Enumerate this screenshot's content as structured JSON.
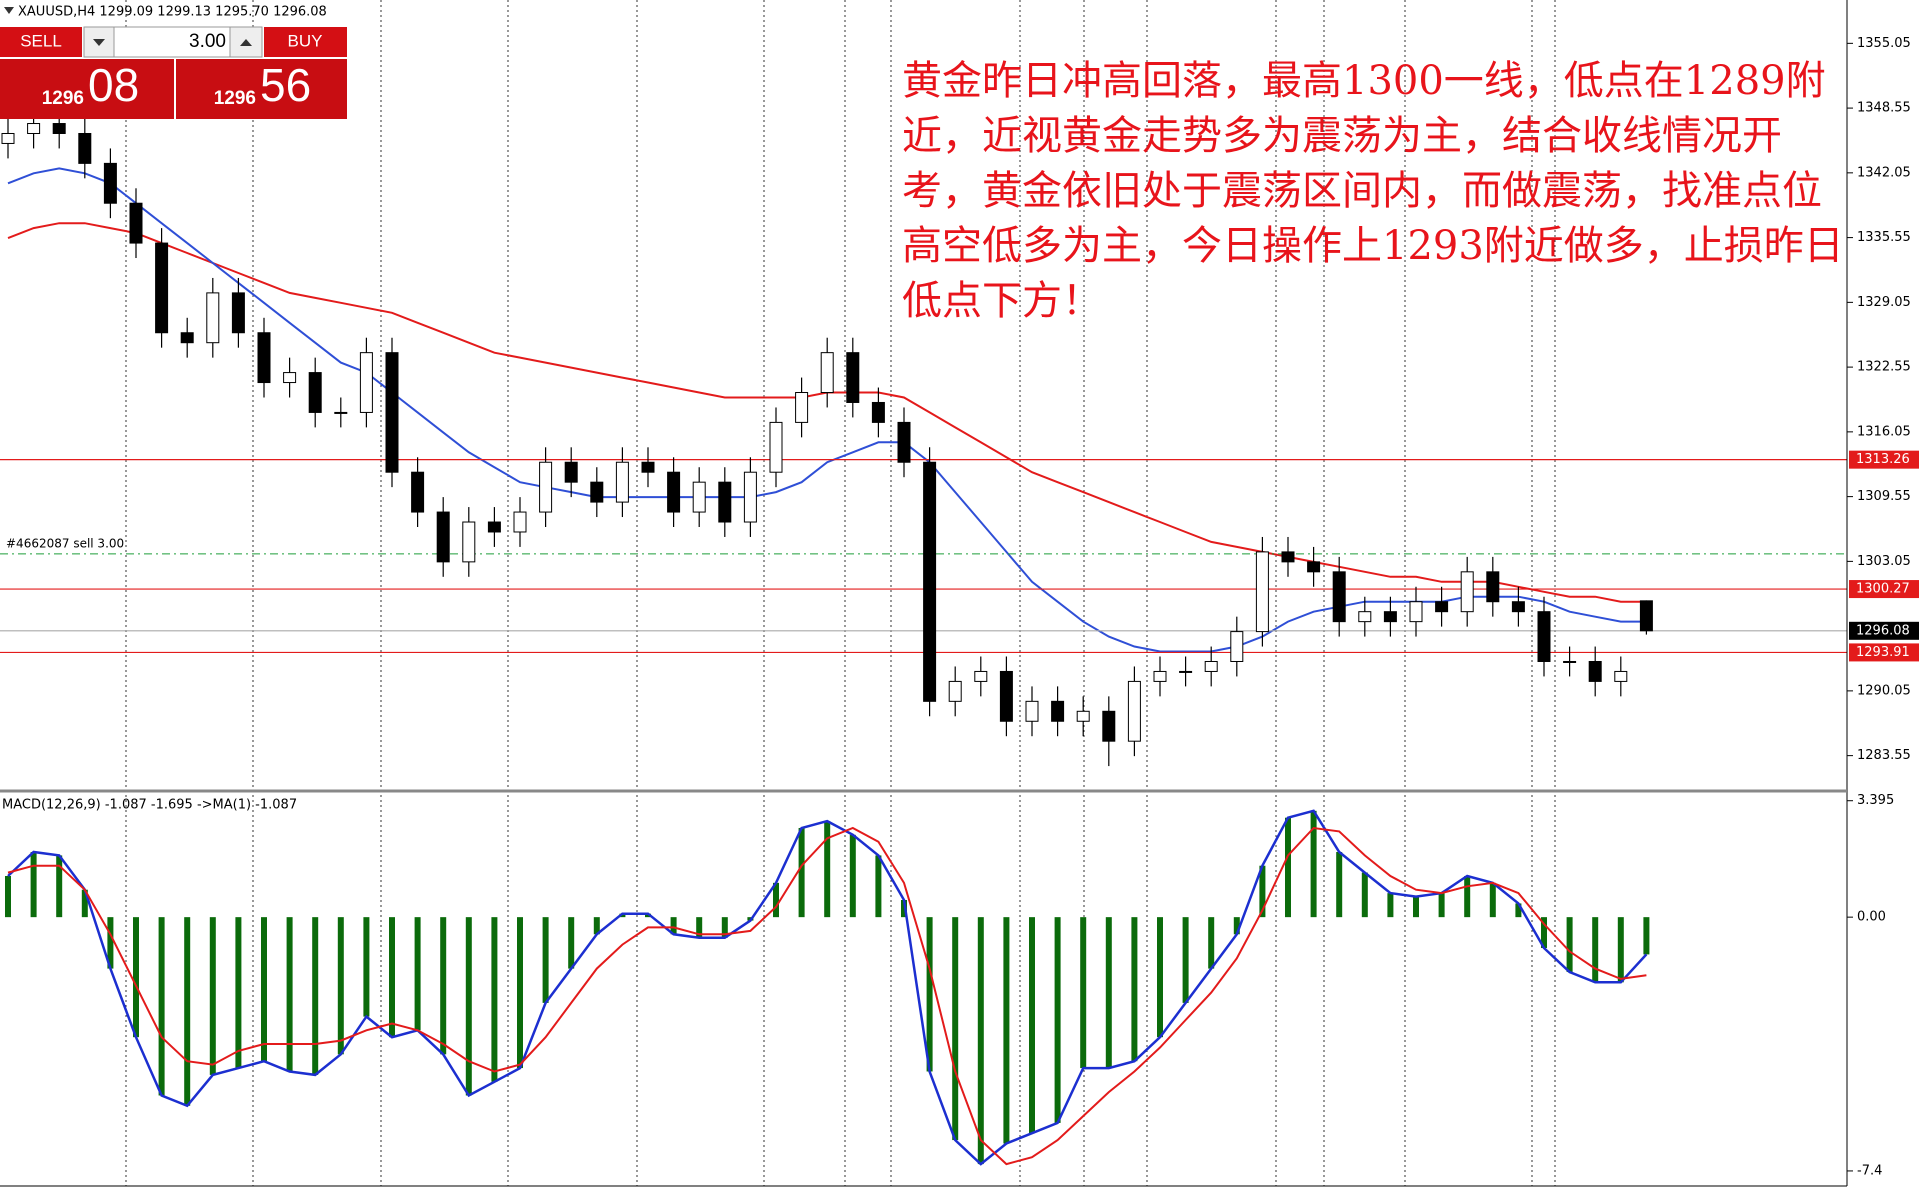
{
  "header": {
    "text": "XAUUSD,H4  1299.09 1299.13 1295.70 1296.08"
  },
  "trade_panel": {
    "sell": "SELL",
    "buy": "BUY",
    "lot": "3.00",
    "bid_big": "1296",
    "bid_small": "08",
    "ask_big": "1296",
    "ask_small": "56"
  },
  "annotation": {
    "lines": [
      "黄金昨日冲高回落，最高1300一线，低点在1289附",
      "近，近视黄金走势多为震荡为主，结合收线情况开",
      "考，黄金依旧处于震荡区间内，而做震荡，找准点位",
      "高空低多为主，今日操作上1293附近做多，止损昨日",
      "低点下方！"
    ],
    "color": "#e8141b"
  },
  "chart_data": [
    {
      "type": "candlestick",
      "open": [
        1345,
        1346,
        1347,
        1346,
        1343,
        1339,
        1335,
        1326,
        1325,
        1330,
        1326,
        1321,
        1322,
        1318,
        1318,
        1324,
        1312,
        1308,
        1303,
        1307,
        1306,
        1308,
        1313,
        1311,
        1309,
        1313,
        1312,
        1308,
        1311,
        1307,
        1312,
        1317,
        1320,
        1324,
        1319,
        1317,
        1313,
        1289,
        1291,
        1292,
        1287,
        1289,
        1287,
        1288,
        1285,
        1291,
        1292,
        1292,
        1293,
        1296,
        1304,
        1303,
        1302,
        1297,
        1298,
        1297,
        1299,
        1298,
        1302,
        1299,
        1298,
        1293,
        1293,
        1291,
        1299.09
      ],
      "high": [
        1347.5,
        1348.5,
        1348.5,
        1347.5,
        1344.5,
        1340.5,
        1336.5,
        1327.5,
        1331.5,
        1331.5,
        1327.5,
        1323.5,
        1323.5,
        1319.5,
        1325.5,
        1325.5,
        1313.5,
        1309.5,
        1308.5,
        1308.5,
        1309.5,
        1314.5,
        1314.5,
        1312.5,
        1314.5,
        1314.5,
        1313.5,
        1312.5,
        1312.5,
        1313.5,
        1318.5,
        1321.5,
        1325.5,
        1325.5,
        1320.5,
        1318.5,
        1314.5,
        1292.5,
        1293.5,
        1293.5,
        1290.5,
        1290.5,
        1289.5,
        1289.5,
        1292.5,
        1293.5,
        1293.5,
        1294.5,
        1297.5,
        1305.5,
        1305.5,
        1304.5,
        1303.5,
        1299.5,
        1299.5,
        1300.5,
        1300.5,
        1303.5,
        1303.5,
        1300.5,
        1299.5,
        1294.5,
        1294.5,
        1293.5,
        1299.13
      ],
      "low": [
        1343.5,
        1344.5,
        1344.5,
        1341.5,
        1337.5,
        1333.5,
        1324.5,
        1323.5,
        1323.5,
        1324.5,
        1319.5,
        1319.5,
        1316.5,
        1316.5,
        1316.5,
        1310.5,
        1306.5,
        1301.5,
        1301.5,
        1304.5,
        1304.5,
        1306.5,
        1309.5,
        1307.5,
        1307.5,
        1310.5,
        1306.5,
        1306.5,
        1305.5,
        1305.5,
        1310.5,
        1315.5,
        1318.5,
        1317.5,
        1315.5,
        1311.5,
        1287.5,
        1287.5,
        1289.5,
        1285.5,
        1285.5,
        1285.5,
        1285.5,
        1282.5,
        1283.5,
        1289.5,
        1290.5,
        1290.5,
        1291.5,
        1294.5,
        1301.5,
        1300.5,
        1295.5,
        1295.5,
        1295.5,
        1295.5,
        1296.5,
        1296.5,
        1297.5,
        1296.5,
        1291.5,
        1291.5,
        1289.5,
        1289.5,
        1295.7
      ],
      "close": [
        1346,
        1347,
        1346,
        1343,
        1339,
        1335,
        1326,
        1325,
        1330,
        1326,
        1321,
        1322,
        1318,
        1318,
        1324,
        1312,
        1308,
        1303,
        1307,
        1306,
        1308,
        1313,
        1311,
        1309,
        1313,
        1312,
        1308,
        1311,
        1307,
        1312,
        1317,
        1320,
        1324,
        1319,
        1317,
        1313,
        1289,
        1291,
        1292,
        1287,
        1289,
        1287,
        1288,
        1285,
        1291,
        1292,
        1292,
        1293,
        1296,
        1304,
        1303,
        1302,
        1297,
        1298,
        1297,
        1299,
        1298,
        1302,
        1299,
        1298,
        1293,
        1293,
        1291,
        1292,
        1296.08
      ],
      "lines": [
        {
          "color": "#e31b1b",
          "values": [
            1335.5,
            1336.5,
            1337,
            1337,
            1336.5,
            1336,
            1335,
            1334,
            1333,
            1332,
            1331,
            1330,
            1329.5,
            1329,
            1328.5,
            1328,
            1327,
            1326,
            1325,
            1324,
            1323.5,
            1323,
            1322.5,
            1322,
            1321.5,
            1321,
            1320.5,
            1320,
            1319.5,
            1319.5,
            1319.5,
            1319.5,
            1320,
            1320,
            1320,
            1319.5,
            1318,
            1316.5,
            1315,
            1313.5,
            1312,
            1311,
            1310,
            1309,
            1308,
            1307,
            1306,
            1305,
            1304.5,
            1304,
            1303.5,
            1303,
            1302.5,
            1302,
            1301.5,
            1301.5,
            1301,
            1301,
            1301,
            1300.5,
            1300,
            1299.5,
            1299.5,
            1299,
            1299
          ]
        },
        {
          "color": "#2f4fd6",
          "values": [
            1341,
            1342,
            1342.5,
            1342,
            1341,
            1339,
            1337,
            1335,
            1333,
            1331,
            1329,
            1327,
            1325,
            1323,
            1322,
            1320,
            1318,
            1316,
            1314,
            1312.5,
            1311,
            1310.5,
            1310,
            1309.5,
            1309.5,
            1309.5,
            1309.5,
            1309.5,
            1309.5,
            1309.5,
            1310,
            1311,
            1313,
            1314,
            1315,
            1315,
            1313,
            1310,
            1307,
            1304,
            1301,
            1299,
            1297,
            1295.5,
            1294.5,
            1294,
            1294,
            1294,
            1294.5,
            1295.5,
            1297,
            1298,
            1298.5,
            1299,
            1299,
            1299,
            1299,
            1299.5,
            1299.5,
            1299.5,
            1299,
            1298,
            1297.5,
            1297,
            1297
          ]
        }
      ],
      "ylim": [
        1280.1,
        1359.4
      ],
      "yticks": [
        1355.05,
        1348.55,
        1342.05,
        1335.55,
        1329.05,
        1322.55,
        1316.05,
        1309.55,
        1303.05,
        1290.05,
        1283.55
      ],
      "price_lines": [
        {
          "value": 1313.26,
          "color": "#e31b1b"
        },
        {
          "value": 1300.27,
          "color": "#e31b1b"
        },
        {
          "value": 1296.08,
          "color": "#000000"
        },
        {
          "value": 1293.91,
          "color": "#e31b1b"
        }
      ],
      "order_line": {
        "label": "#4662087 sell 3.00",
        "value": 1303.8,
        "color": "#1e9e3a"
      }
    },
    {
      "type": "macd",
      "title": "MACD(12,26,9) -1.087 -1.695  ->MA(1) -1.087",
      "histogram": {
        "color": "#0b6b0b",
        "line_color": "#1c2fd0",
        "values": [
          1.2,
          1.9,
          1.8,
          0.8,
          -1.5,
          -3.5,
          -5.2,
          -5.5,
          -4.6,
          -4.4,
          -4.2,
          -4.5,
          -4.6,
          -4.0,
          -2.9,
          -3.5,
          -3.3,
          -4.0,
          -5.2,
          -4.8,
          -4.4,
          -2.5,
          -1.5,
          -0.5,
          0.1,
          0.1,
          -0.5,
          -0.6,
          -0.6,
          -0.1,
          1.0,
          2.6,
          2.8,
          2.4,
          1.8,
          0.5,
          -4.5,
          -6.5,
          -7.2,
          -6.6,
          -6.3,
          -6.0,
          -4.4,
          -4.4,
          -4.2,
          -3.5,
          -2.5,
          -1.5,
          -0.5,
          1.5,
          2.9,
          3.1,
          1.9,
          1.3,
          0.7,
          0.6,
          0.7,
          1.2,
          1.0,
          0.4,
          -0.9,
          -1.6,
          -1.9,
          -1.9,
          -1.087
        ]
      },
      "signal": {
        "color": "#e31b1b",
        "values": [
          1.3,
          1.5,
          1.5,
          0.8,
          -0.5,
          -2,
          -3.5,
          -4.2,
          -4.3,
          -3.9,
          -3.7,
          -3.7,
          -3.7,
          -3.6,
          -3.3,
          -3.1,
          -3.3,
          -3.7,
          -4.2,
          -4.5,
          -4.3,
          -3.5,
          -2.5,
          -1.5,
          -0.8,
          -0.3,
          -0.3,
          -0.5,
          -0.5,
          -0.4,
          0.3,
          1.5,
          2.3,
          2.6,
          2.2,
          1.0,
          -1.5,
          -4.5,
          -6.5,
          -7.2,
          -7.0,
          -6.5,
          -5.8,
          -5.1,
          -4.5,
          -3.8,
          -3.0,
          -2.2,
          -1.2,
          0.2,
          1.8,
          2.6,
          2.5,
          1.8,
          1.2,
          0.8,
          0.7,
          0.9,
          1.0,
          0.7,
          -0.2,
          -1.0,
          -1.5,
          -1.8,
          -1.695
        ]
      },
      "ylim": [
        -7.81,
        3.62
      ],
      "yticks": [
        3.395,
        {
          "value": 0,
          "label": "0.00"
        },
        -7.4
      ]
    }
  ]
}
